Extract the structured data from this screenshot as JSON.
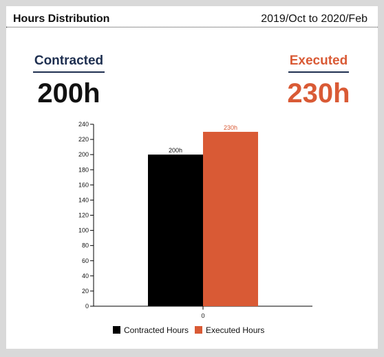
{
  "header": {
    "title": "Hours Distribution",
    "range": "2019/Oct to 2020/Feb"
  },
  "kpis": {
    "contracted": {
      "label": "Contracted",
      "value": "200h"
    },
    "executed": {
      "label": "Executed",
      "value": "230h"
    }
  },
  "chart_data": {
    "type": "bar",
    "categories": [
      "0"
    ],
    "series": [
      {
        "name": "Contracted Hours",
        "values": [
          200
        ],
        "labels": [
          "200h"
        ],
        "color": "#000000"
      },
      {
        "name": "Executed Hours",
        "values": [
          230
        ],
        "labels": [
          "230h"
        ],
        "color": "#d95a35"
      }
    ],
    "title": "",
    "xlabel": "",
    "ylabel": "",
    "ylim": [
      0,
      240
    ],
    "yticks": [
      0,
      20,
      40,
      60,
      80,
      100,
      120,
      140,
      160,
      180,
      200,
      220,
      240
    ],
    "grid": false,
    "legend": "bottom"
  }
}
